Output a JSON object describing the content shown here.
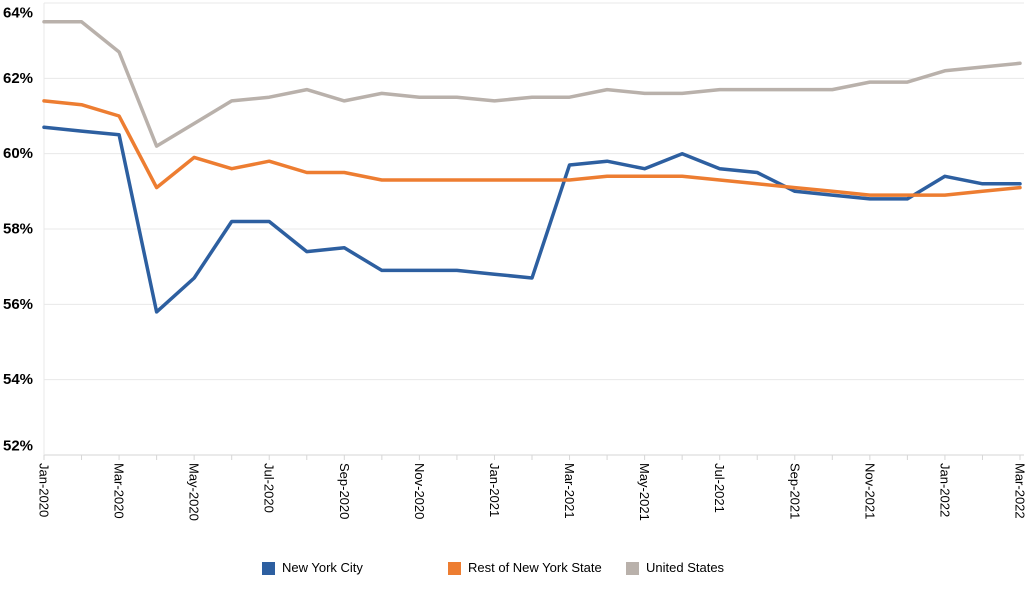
{
  "chart_data": {
    "type": "line",
    "title": "",
    "categories": [
      "Jan-2020",
      "Feb-2020",
      "Mar-2020",
      "Apr-2020",
      "May-2020",
      "Jun-2020",
      "Jul-2020",
      "Aug-2020",
      "Sep-2020",
      "Oct-2020",
      "Nov-2020",
      "Dec-2020",
      "Jan-2021",
      "Feb-2021",
      "Mar-2021",
      "Apr-2021",
      "May-2021",
      "Jun-2021",
      "Jul-2021",
      "Aug-2021",
      "Sep-2021",
      "Oct-2021",
      "Nov-2021",
      "Dec-2021",
      "Jan-2022",
      "Feb-2022",
      "Mar-2022"
    ],
    "x_tick_labels_shown": [
      "Jan-2020",
      "Mar-2020",
      "May-2020",
      "Jul-2020",
      "Sep-2020",
      "Nov-2020",
      "Jan-2021",
      "Mar-2021",
      "May-2021",
      "Jul-2021",
      "Sep-2021",
      "Nov-2021",
      "Jan-2022",
      "Mar-2022"
    ],
    "x_tick_label_every": 2,
    "series": [
      {
        "name": "New York City",
        "color": "#2D5FA0",
        "values": [
          60.7,
          60.6,
          60.5,
          55.8,
          56.7,
          58.2,
          58.2,
          57.4,
          57.5,
          56.9,
          56.9,
          56.9,
          56.8,
          56.7,
          59.7,
          59.8,
          59.6,
          60.0,
          59.6,
          59.5,
          59.0,
          58.9,
          58.8,
          58.8,
          59.4,
          59.2,
          59.2
        ]
      },
      {
        "name": "Rest of New York State",
        "color": "#ED7D31",
        "values": [
          61.4,
          61.3,
          61.0,
          59.1,
          59.9,
          59.6,
          59.8,
          59.5,
          59.5,
          59.3,
          59.3,
          59.3,
          59.3,
          59.3,
          59.3,
          59.4,
          59.4,
          59.4,
          59.3,
          59.2,
          59.1,
          59.0,
          58.9,
          58.9,
          58.9,
          59.0,
          59.1
        ]
      },
      {
        "name": "United States",
        "color": "#B9B1AB",
        "values": [
          63.5,
          63.5,
          62.7,
          60.2,
          60.8,
          61.4,
          61.5,
          61.7,
          61.4,
          61.6,
          61.5,
          61.5,
          61.4,
          61.5,
          61.5,
          61.7,
          61.6,
          61.6,
          61.7,
          61.7,
          61.7,
          61.7,
          61.9,
          61.9,
          62.2,
          62.3,
          62.4
        ]
      }
    ],
    "xlabel": "",
    "ylabel": "",
    "ylim": [
      52,
      64
    ],
    "ytick_values": [
      64,
      62,
      60,
      58,
      56,
      54,
      52
    ],
    "ytick_labels": [
      "64%",
      "62%",
      "60%",
      "58%",
      "56%",
      "54%",
      "52%"
    ],
    "grid": "horizontal",
    "legend_position": "bottom"
  },
  "colors": {
    "background": "#FFFFFF",
    "gridline": "#E8E8E8",
    "axis_line": "#D6D6D6",
    "tick": "#D6D6D6",
    "text": "#000000"
  }
}
